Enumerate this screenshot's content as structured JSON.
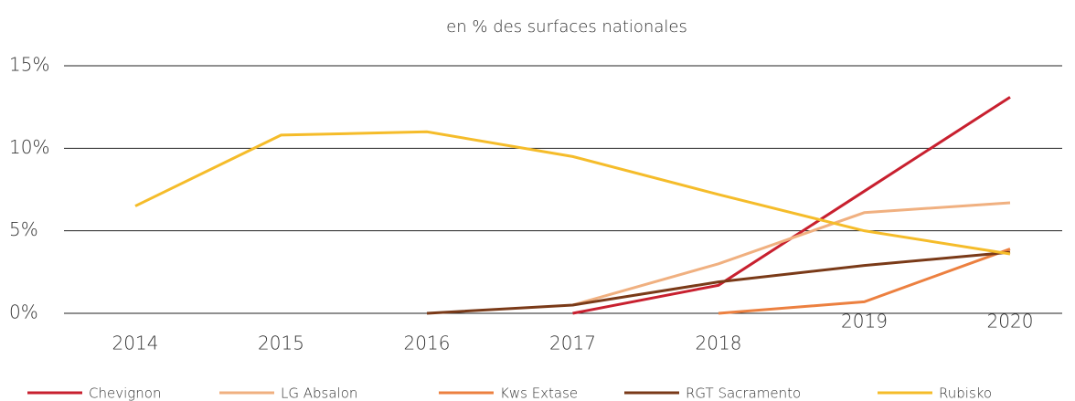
{
  "chart_data": {
    "type": "line",
    "title": "en % des surfaces nationales",
    "categories": [
      "2014",
      "2015",
      "2016",
      "2017",
      "2018",
      "2019",
      "2020"
    ],
    "series": [
      {
        "name": "Chevignon",
        "color": "#c8202f",
        "values": [
          null,
          null,
          null,
          0,
          1.7,
          7.4,
          13.1
        ]
      },
      {
        "name": "LG Absalon",
        "color": "#f0b080",
        "values": [
          null,
          null,
          null,
          0.5,
          3.0,
          6.1,
          6.7
        ]
      },
      {
        "name": "Kws Extase",
        "color": "#ec8040",
        "values": [
          null,
          null,
          null,
          null,
          0,
          0.7,
          3.9
        ]
      },
      {
        "name": "RGT Sacramento",
        "color": "#7a3a18",
        "values": [
          null,
          null,
          0,
          0.5,
          1.9,
          2.9,
          3.7
        ]
      },
      {
        "name": "Rubisko",
        "color": "#f5bc2a",
        "values": [
          6.5,
          10.8,
          11.0,
          9.5,
          7.2,
          5.0,
          3.6
        ]
      }
    ],
    "ylim": [
      0,
      15
    ],
    "yticks": [
      {
        "value": 0,
        "label": "0%"
      },
      {
        "value": 5,
        "label": "5%"
      },
      {
        "value": 10,
        "label": "10%"
      },
      {
        "value": 15,
        "label": "15%"
      }
    ],
    "grid": true,
    "legend": "bottom"
  }
}
